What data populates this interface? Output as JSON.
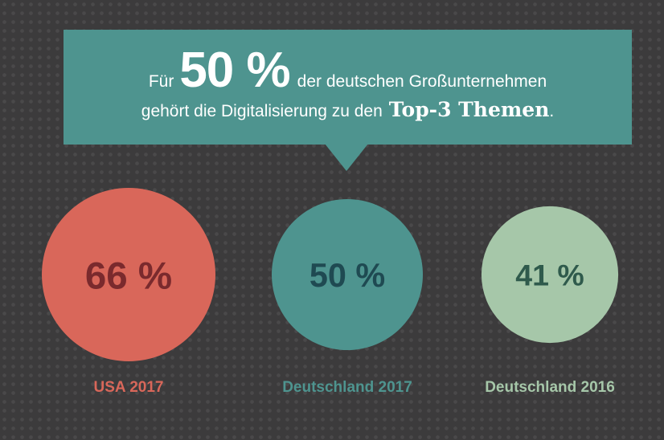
{
  "callout": {
    "prefix": "Für",
    "highlight": "50 %",
    "line1_rest": "der deutschen Großunternehmen",
    "line2_text": "gehört die Digitalisierung zu den",
    "line2_bold": "Top-3 Themen",
    "line2_end": "."
  },
  "colors": {
    "background": "#3c3b3c",
    "callout": "#4e948f"
  },
  "chart_data": {
    "type": "bubble",
    "categories": [
      "USA 2017",
      "Deutschland 2017",
      "Deutschland 2016"
    ],
    "values": [
      66,
      50,
      41
    ],
    "value_labels": [
      "66 %",
      "50 %",
      "41 %"
    ],
    "unit": "%",
    "colors": {
      "fills": [
        "#d9675a",
        "#4e948f",
        "#a6c7a9"
      ],
      "value_text": [
        "#7a2a2d",
        "#1f4a52",
        "#2f5a4c"
      ],
      "category_text": [
        "#d9675a",
        "#4e948f",
        "#a6c7a9"
      ]
    }
  }
}
